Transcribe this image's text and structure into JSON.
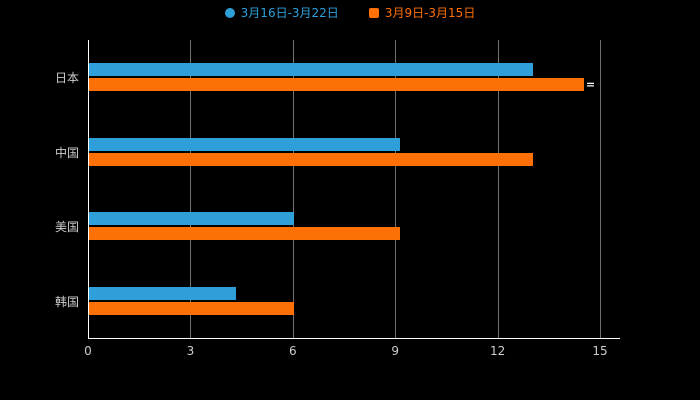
{
  "background": "#000000",
  "legend": {
    "items": [
      {
        "label": "3月16日-3月22日",
        "color": "#2f9fd9",
        "marker": "circle"
      },
      {
        "label": "3月9日-3月15日",
        "color": "#fd7006",
        "marker": "square"
      }
    ]
  },
  "chart_data": {
    "type": "bar",
    "orientation": "horizontal",
    "title": "",
    "xlabel": "",
    "ylabel": "",
    "categories": [
      "日本",
      "中国",
      "美国",
      "韩国"
    ],
    "series": [
      {
        "name": "3月16日-3月22日",
        "color": "#2f9fd9",
        "values": [
          13,
          9.1,
          6,
          4.3
        ]
      },
      {
        "name": "3月9日-3月15日",
        "color": "#fd7006",
        "values": [
          14.5,
          13,
          9.1,
          6
        ]
      }
    ],
    "xlim": [
      0,
      15
    ],
    "xticks": [
      0,
      3,
      6,
      9,
      12,
      15
    ],
    "xtick_labels": [
      "0",
      "3",
      "6",
      "9",
      "12",
      "15"
    ],
    "grid": true,
    "legend_position": "top",
    "axis_color": "#ffffff",
    "gridline_color": "#707070",
    "label_color": "#cccccc",
    "annotation": {
      "text": "=",
      "category_index": 0,
      "series_index": 1,
      "color": "#ffffff"
    }
  }
}
